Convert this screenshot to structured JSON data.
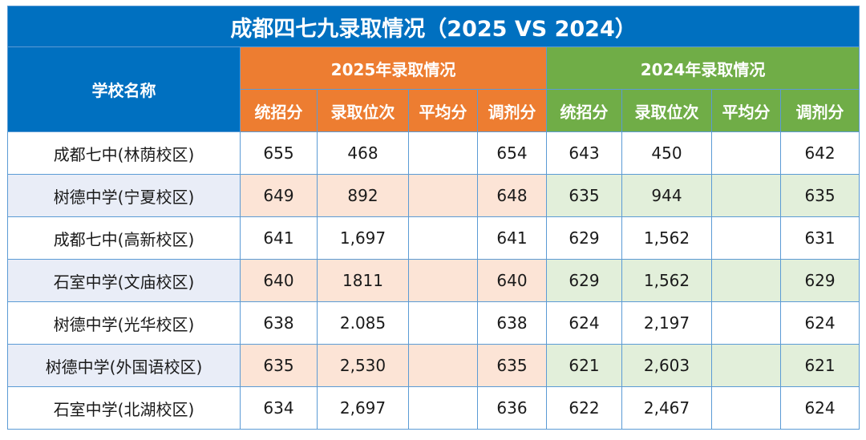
{
  "title": "成都四七九录取情况（2025 VS 2024）",
  "header": {
    "school": "学校名称",
    "group_2025": "2025年录取情况",
    "group_2024": "2024年录取情况",
    "sub_2025": [
      "统招分",
      "录取位次",
      "平均分",
      "调剂分"
    ],
    "sub_2024": [
      "统招分",
      "录取位次",
      "平均分",
      "调剂分"
    ]
  },
  "rows": [
    {
      "school": "成都七中(林荫校区)",
      "y2025": [
        "655",
        "468",
        "",
        "654"
      ],
      "y2024": [
        "643",
        "450",
        "",
        "642"
      ]
    },
    {
      "school": "树德中学(宁夏校区)",
      "y2025": [
        "649",
        "892",
        "",
        "648"
      ],
      "y2024": [
        "635",
        "944",
        "",
        "635"
      ]
    },
    {
      "school": "成都七中(高新校区)",
      "y2025": [
        "641",
        "1,697",
        "",
        "641"
      ],
      "y2024": [
        "629",
        "1,562",
        "",
        "631"
      ]
    },
    {
      "school": "石室中学(文庙校区)",
      "y2025": [
        "640",
        "1811",
        "",
        "640"
      ],
      "y2024": [
        "629",
        "1,562",
        "",
        "629"
      ]
    },
    {
      "school": "树德中学(光华校区)",
      "y2025": [
        "638",
        "2.085",
        "",
        "638"
      ],
      "y2024": [
        "624",
        "2,197",
        "",
        "624"
      ]
    },
    {
      "school": "树德中学(外国语校区)",
      "y2025": [
        "635",
        "2,530",
        "",
        "635"
      ],
      "y2024": [
        "621",
        "2,603",
        "",
        "621"
      ]
    },
    {
      "school": "石室中学(北湖校区)",
      "y2025": [
        "634",
        "2,697",
        "",
        "636"
      ],
      "y2024": [
        "622",
        "2,467",
        "",
        "624"
      ]
    }
  ],
  "colors": {
    "title_bg": "#0070c0",
    "group_2025_bg": "#ed7d31",
    "group_2024_bg": "#70ad47",
    "alt_school_bg": "#e9edf7",
    "alt_2025_bg": "#fce4d6",
    "alt_2024_bg": "#e2efda"
  }
}
